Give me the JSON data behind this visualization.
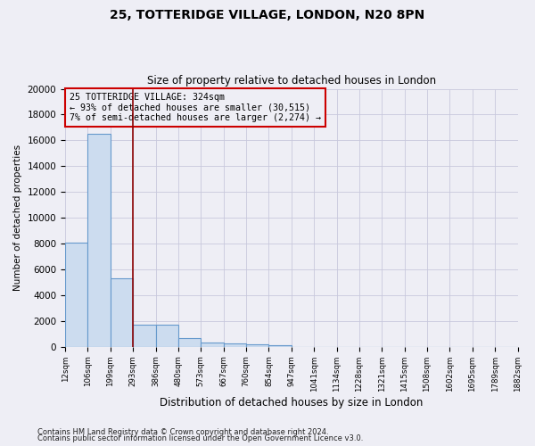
{
  "title_line1": "25, TOTTERIDGE VILLAGE, LONDON, N20 8PN",
  "title_line2": "Size of property relative to detached houses in London",
  "xlabel": "Distribution of detached houses by size in London",
  "ylabel": "Number of detached properties",
  "annotation_line1": "25 TOTTERIDGE VILLAGE: 324sqm",
  "annotation_line2": "← 93% of detached houses are smaller (30,515)",
  "annotation_line3": "7% of semi-detached houses are larger (2,274) →",
  "footer_line1": "Contains HM Land Registry data © Crown copyright and database right 2024.",
  "footer_line2": "Contains public sector information licensed under the Open Government Licence v3.0.",
  "bar_values": [
    8100,
    16500,
    5300,
    1750,
    1750,
    650,
    350,
    275,
    175,
    100,
    0,
    0,
    0,
    0,
    0,
    0,
    0,
    0,
    0,
    0
  ],
  "bar_color": "#ccdcef",
  "bar_edge_color": "#6699cc",
  "categories": [
    "12sqm",
    "106sqm",
    "199sqm",
    "293sqm",
    "386sqm",
    "480sqm",
    "573sqm",
    "667sqm",
    "760sqm",
    "854sqm",
    "947sqm",
    "1041sqm",
    "1134sqm",
    "1228sqm",
    "1321sqm",
    "1415sqm",
    "1508sqm",
    "1602sqm",
    "1695sqm",
    "1789sqm",
    "1882sqm"
  ],
  "red_line_x": 2.5,
  "ylim": [
    0,
    20000
  ],
  "yticks": [
    0,
    2000,
    4000,
    6000,
    8000,
    10000,
    12000,
    14000,
    16000,
    18000,
    20000
  ],
  "grid_color": "#c8c8dc",
  "annotation_box_color": "#cc0000",
  "background_color": "#eeeef5"
}
